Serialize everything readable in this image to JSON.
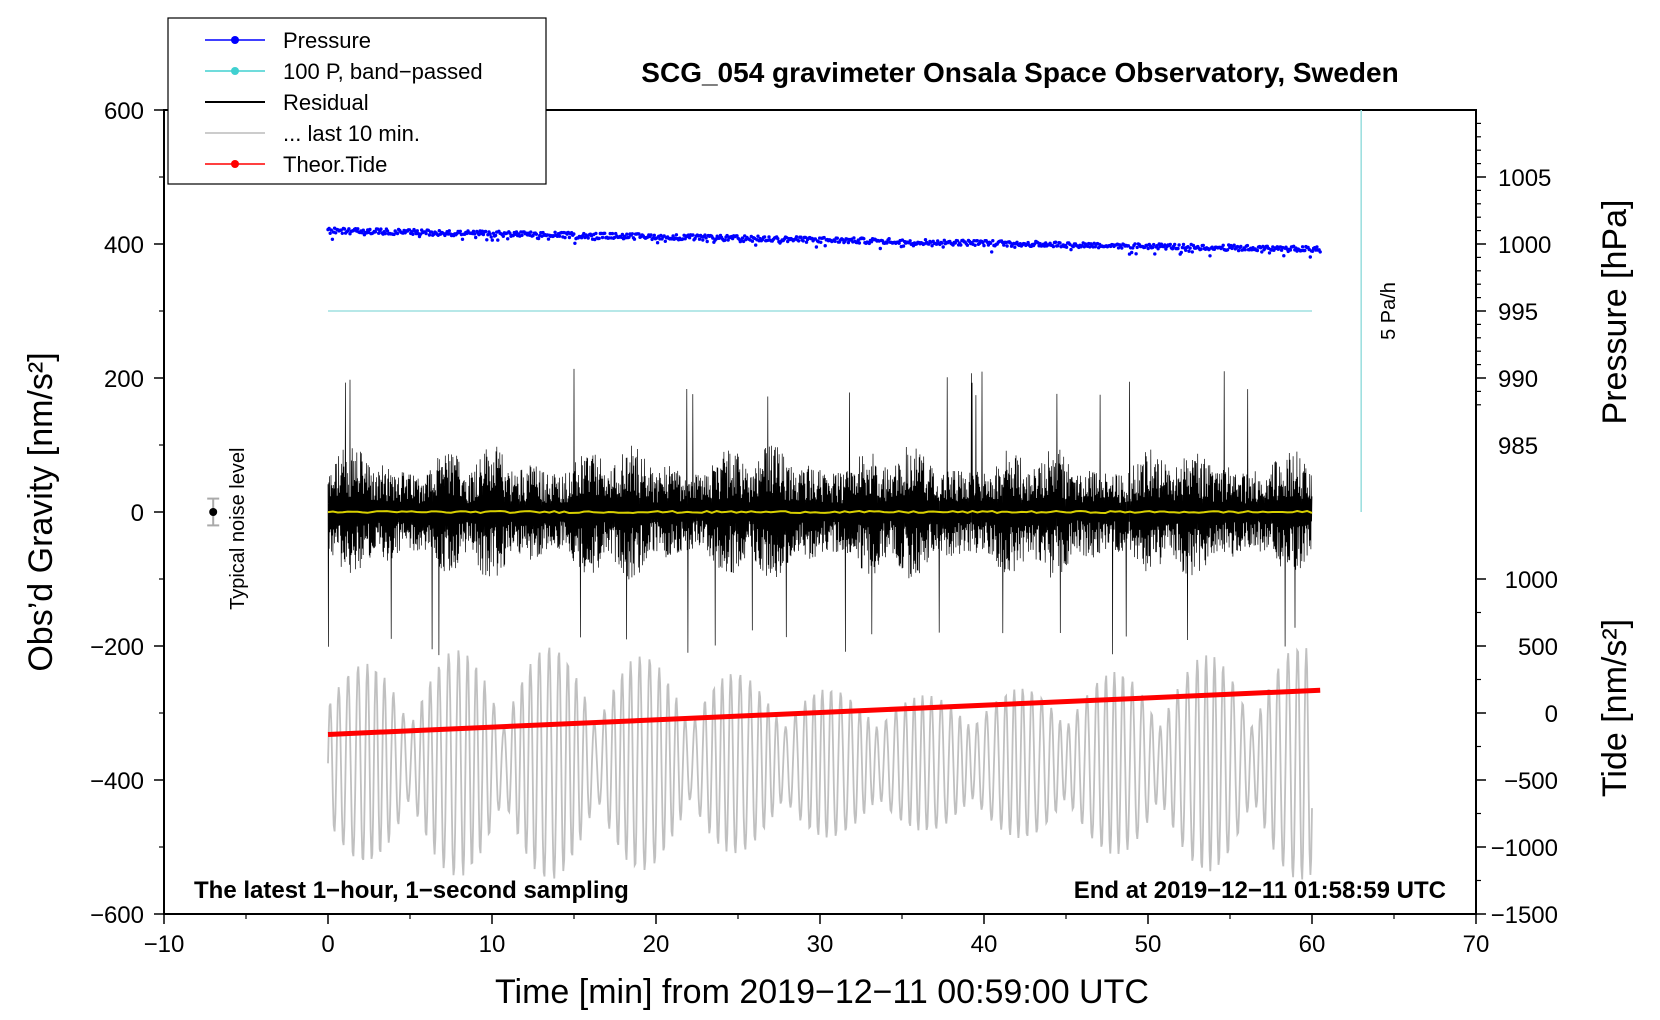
{
  "chart_data": {
    "type": "line",
    "title": "SCG_054 gravimeter Onsala Space Observatory, Sweden",
    "xlabel": "Time [min] from 2019−12−11 00:59:00 UTC",
    "ylabel_left": "Obs’d Gravity [nm/s²]",
    "ylabel_right_pressure": "Pressure [hPa]",
    "ylabel_right_tide": "Tide [nm/s²]",
    "xlim": [
      -10,
      70
    ],
    "ylim": [
      -600,
      600
    ],
    "x_ticks": [
      -10,
      0,
      10,
      20,
      30,
      40,
      50,
      60,
      70
    ],
    "x_tick_labels": [
      "−10",
      "0",
      "10",
      "20",
      "30",
      "40",
      "50",
      "60",
      "70"
    ],
    "y_ticks": [
      -600,
      -400,
      -200,
      0,
      200,
      400,
      600
    ],
    "y_tick_labels": [
      "−600",
      "−400",
      "−200",
      "0",
      "200",
      "400",
      "600"
    ],
    "pressure_axis": {
      "ticks": [
        985,
        990,
        995,
        1000,
        1005
      ],
      "tick_labels": [
        "985",
        "990",
        "995",
        "1000",
        "1005"
      ],
      "gravity_at_1000hPa": 400,
      "gravity_per_hPa": 20
    },
    "tide_axis": {
      "ticks": [
        -1500,
        -1000,
        -500,
        0,
        500,
        1000
      ],
      "tick_labels": [
        "−1500",
        "−1000",
        "−500",
        "0",
        "500",
        "1000"
      ],
      "gravity_at_0": -300,
      "gravity_per_unit": 0.2
    },
    "legend": {
      "placement": "top-left",
      "entries": [
        {
          "label": "Pressure",
          "color": "#0000ff",
          "marker": true
        },
        {
          "label": "100 P, band−passed",
          "color": "#40d0d0",
          "marker": true
        },
        {
          "label": "Residual",
          "color": "#000000",
          "marker": false
        },
        {
          "label": "... last 10 min.",
          "color": "#bbbbbb",
          "marker": false
        },
        {
          "label": "Theor.Tide",
          "color": "#ff0000",
          "marker": true
        }
      ]
    },
    "series": [
      {
        "name": "Pressure",
        "color": "#0000ff",
        "x_range": [
          0,
          60.5
        ],
        "values_hPa_start_end": [
          1001.0,
          999.6
        ],
        "scatter_hPa": 0.4
      },
      {
        "name": "100 P, band-passed",
        "color": "#9fe0e0",
        "x_range": [
          0,
          60
        ],
        "value_gravity": 300
      },
      {
        "name": "Residual",
        "color": "#000000",
        "x_range": [
          0,
          60
        ],
        "amplitude_typical": 90,
        "amplitude_max": 215
      },
      {
        "name": "Residual smoothed",
        "color": "#d8d000",
        "x_range": [
          0,
          60
        ],
        "value_gravity": 0
      },
      {
        "name": "... last 10 min.",
        "color": "#c0c0c0",
        "x_range": [
          0,
          60
        ],
        "center_gravity": -375,
        "amplitude_max": 175
      },
      {
        "name": "Theor.Tide",
        "color": "#ff0000",
        "x_range": [
          0,
          60.5
        ],
        "tide_start_end": [
          -160,
          170
        ]
      }
    ],
    "annotations": {
      "noise_label": "Typical noise level",
      "noise_x": -7,
      "noise_value": 0,
      "noise_half_range": 20,
      "rate_label": "5 Pa/h",
      "rate_x": 63,
      "rate_line_range": [
        0,
        600
      ],
      "bottom_left_text": "The latest 1−hour, 1−second sampling",
      "bottom_right_text": "End at 2019−12−11 01:58:59 UTC"
    }
  }
}
